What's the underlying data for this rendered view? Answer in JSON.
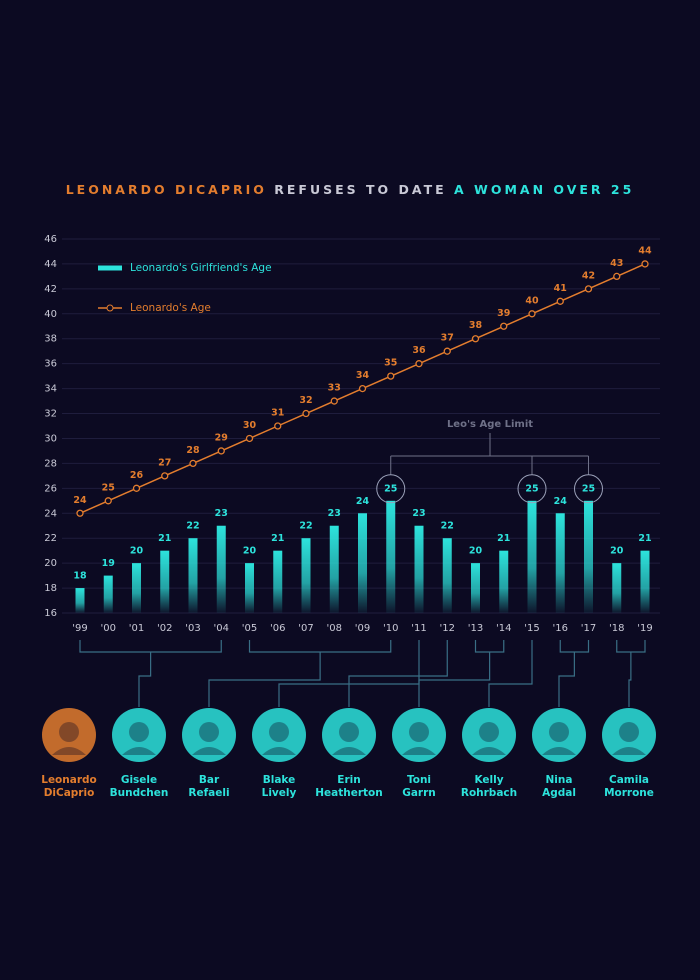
{
  "chart_data": {
    "type": "bar_line",
    "title_parts": [
      "LEONARDO DICAPRIO",
      "REFUSES TO DATE",
      "A WOMAN OVER 25"
    ],
    "categories": [
      "'99",
      "'00",
      "'01",
      "'02",
      "'03",
      "'04",
      "'05",
      "'06",
      "'07",
      "'08",
      "'09",
      "'10",
      "'11",
      "'12",
      "'13",
      "'14",
      "'15",
      "'16",
      "'17",
      "'18",
      "'19"
    ],
    "series": [
      {
        "name": "Leonardo's Girlfriend's Age",
        "type": "bar",
        "color": "#2de3dc",
        "values": [
          18,
          19,
          20,
          21,
          22,
          23,
          20,
          21,
          22,
          23,
          24,
          25,
          23,
          22,
          20,
          21,
          25,
          24,
          25,
          20,
          21
        ]
      },
      {
        "name": "Leonardo's Age",
        "type": "line",
        "color": "#e37d2e",
        "values": [
          24,
          25,
          26,
          27,
          28,
          29,
          30,
          31,
          32,
          33,
          34,
          35,
          36,
          37,
          38,
          39,
          40,
          41,
          42,
          43,
          44
        ]
      }
    ],
    "ylim": [
      16,
      46
    ],
    "yticks": [
      16,
      18,
      20,
      22,
      24,
      26,
      28,
      30,
      32,
      34,
      36,
      38,
      40,
      42,
      44,
      46
    ],
    "grid": true,
    "annotation": "Leo's Age Limit",
    "people": [
      [
        "Leonardo",
        "DiCaprio"
      ],
      [
        "Gisele",
        "Bundchen"
      ],
      [
        "Bar",
        "Refaeli"
      ],
      [
        "Blake",
        "Lively"
      ],
      [
        "Erin",
        "Heatherton"
      ],
      [
        "Toni",
        "Garrn"
      ],
      [
        "Kelly",
        "Rohrbach"
      ],
      [
        "Nina",
        "Agdal"
      ],
      [
        "Camila",
        "Morrone"
      ]
    ]
  }
}
